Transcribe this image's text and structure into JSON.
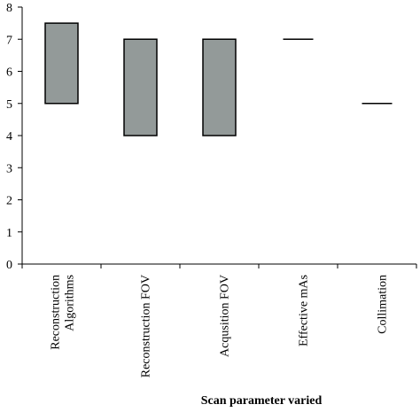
{
  "chart_data": {
    "type": "bar",
    "subtype": "floating-range",
    "title": "",
    "xlabel": "Scan parameter varied",
    "ylabel": "",
    "ylim": [
      0,
      8
    ],
    "yticks": [
      "0",
      "1",
      "2",
      "3",
      "4",
      "5",
      "6",
      "7",
      "8"
    ],
    "categories": [
      [
        "Reconstruction",
        "Algorithms"
      ],
      [
        "Reconstruction FOV"
      ],
      [
        "Acqusition FOV"
      ],
      [
        "Effective mAs"
      ],
      [
        "Collimation"
      ]
    ],
    "series": [
      {
        "ranges": [
          [
            5,
            7.5
          ],
          [
            4,
            7
          ],
          [
            4,
            7
          ],
          [
            7,
            7
          ],
          [
            5,
            5
          ]
        ]
      }
    ],
    "grid": false,
    "legend": "none",
    "colors": {
      "bar_fill": "#939a99",
      "bar_stroke": "#000000",
      "axis": "#000000"
    }
  }
}
